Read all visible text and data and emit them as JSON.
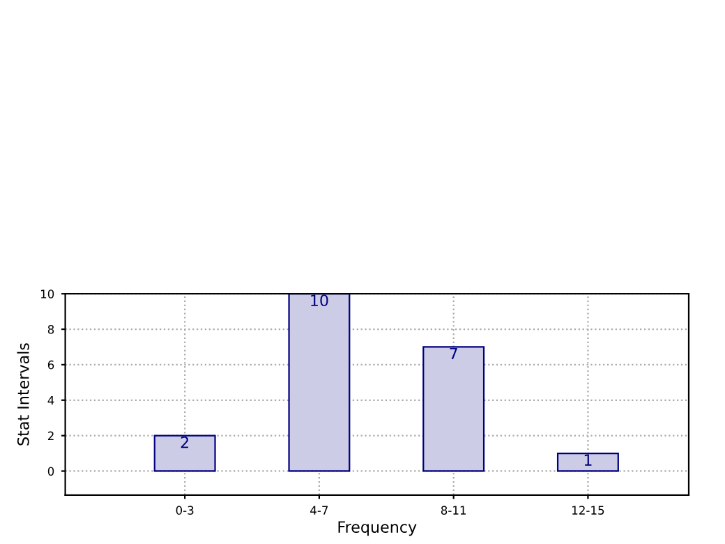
{
  "chart_data": {
    "type": "bar",
    "xlabel": "Frequency",
    "ylabel": "Stat Intervals",
    "categories": [
      "0-3",
      "4-7",
      "8-11",
      "12-15"
    ],
    "values": [
      2,
      10,
      7,
      1
    ],
    "color": "#ccccE6",
    "ylim": [
      -1.35,
      10
    ],
    "yticks": [
      0,
      2,
      4,
      6,
      8,
      10
    ],
    "grid": true,
    "data_labels": true,
    "line_style": "dotted"
  }
}
